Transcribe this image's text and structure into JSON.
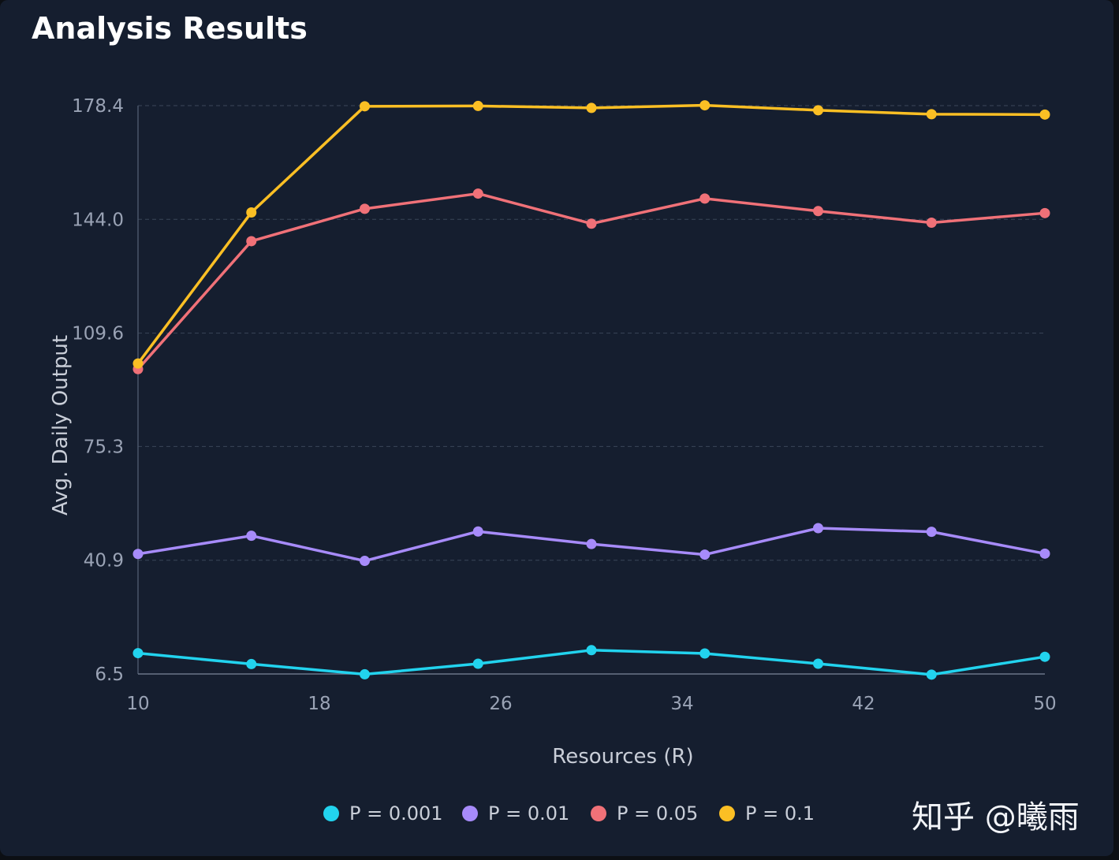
{
  "header": {
    "title": "Analysis Results"
  },
  "watermark": "知乎 @曦雨",
  "chart_data": {
    "type": "line",
    "xlabel": "Resources (R)",
    "ylabel": "Avg. Daily Output",
    "xlim": [
      10,
      50
    ],
    "ylim": [
      6.5,
      178.4
    ],
    "x_ticks": [
      "10",
      "18",
      "26",
      "34",
      "42",
      "50"
    ],
    "x_tick_values": [
      10,
      18,
      26,
      34,
      42,
      50
    ],
    "y_ticks": [
      "6.5",
      "40.9",
      "75.3",
      "109.6",
      "144.0",
      "178.4"
    ],
    "y_tick_values": [
      6.5,
      40.9,
      75.3,
      109.6,
      144.0,
      178.4
    ],
    "grid": "horizontal dashed",
    "legend_position": "bottom",
    "x": [
      10,
      15,
      20,
      25,
      30,
      35,
      40,
      45,
      50
    ],
    "series": [
      {
        "name": "P = 0.001",
        "color": "#22d3ee",
        "values": [
          12.8,
          9.5,
          6.4,
          9.6,
          13.7,
          12.7,
          9.6,
          6.3,
          11.7
        ]
      },
      {
        "name": "P = 0.01",
        "color": "#a78bfa",
        "values": [
          42.8,
          48.3,
          40.7,
          49.6,
          45.8,
          42.6,
          50.6,
          49.5,
          42.9
        ]
      },
      {
        "name": "P = 0.05",
        "color": "#f07178",
        "values": [
          98.7,
          137.4,
          147.2,
          151.8,
          142.7,
          150.3,
          146.5,
          143.0,
          145.9
        ]
      },
      {
        "name": "P = 0.1",
        "color": "#fbbf24",
        "values": [
          100.4,
          146.1,
          178.2,
          178.3,
          177.7,
          178.5,
          177.0,
          175.8,
          175.7
        ]
      }
    ]
  }
}
